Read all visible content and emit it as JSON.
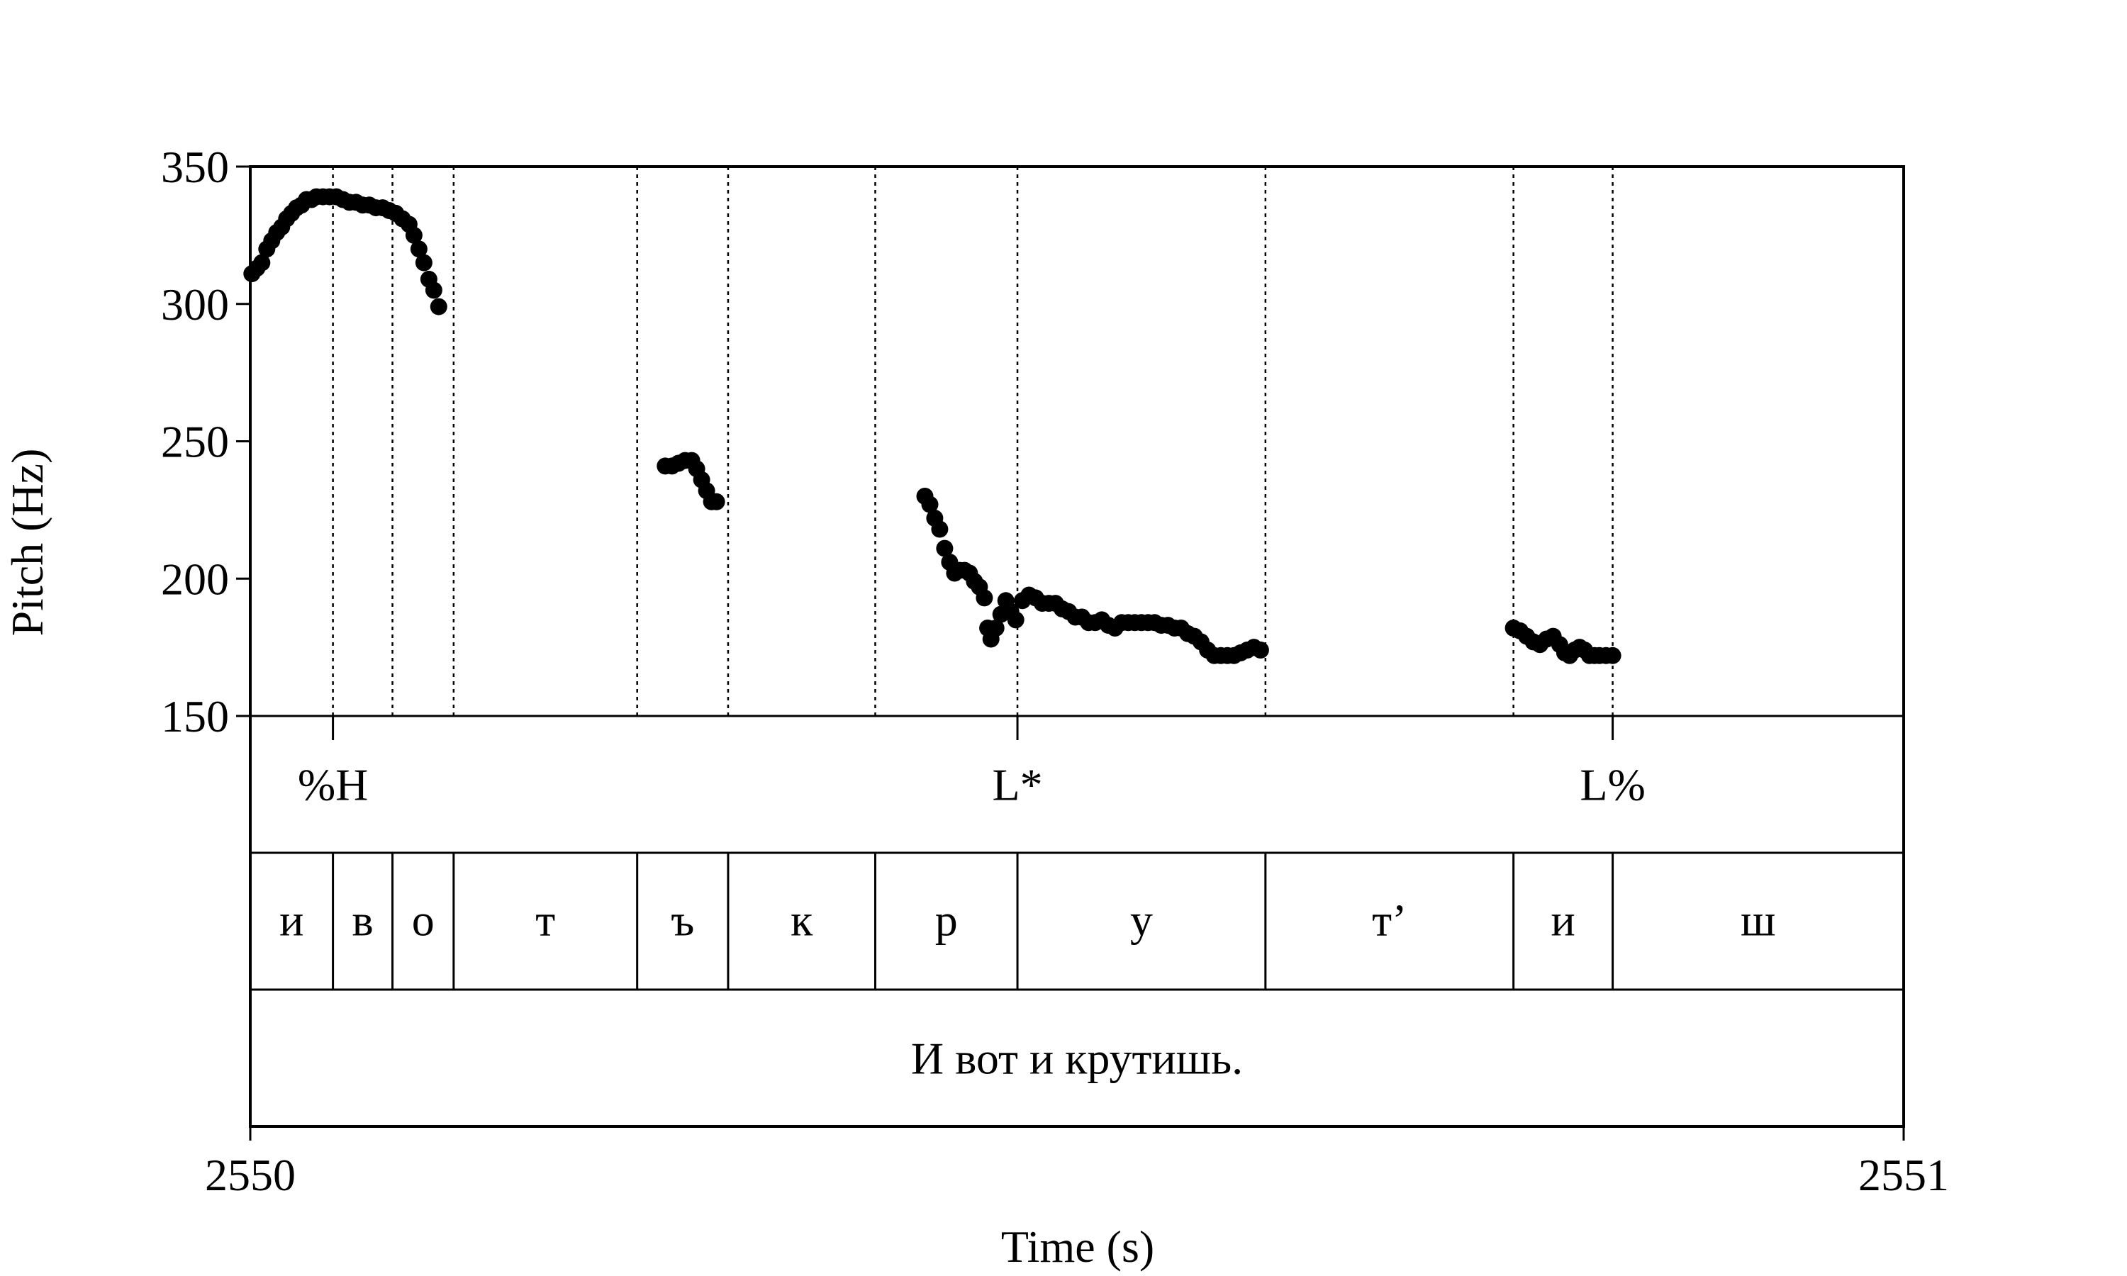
{
  "chart_data": {
    "type": "scatter",
    "title": "",
    "xlabel": "Time (s)",
    "ylabel": "Pitch (Hz)",
    "xlim": [
      2550,
      2551
    ],
    "ylim": [
      150,
      350
    ],
    "y_ticks": [
      "150",
      "200",
      "250",
      "300",
      "350"
    ],
    "x_ticks": [
      "2550",
      "2551"
    ],
    "grid": false,
    "boundaries": [
      2550.05,
      2550.086,
      2550.123,
      2550.234,
      2550.289,
      2550.378,
      2550.464,
      2550.614,
      2550.764,
      2550.824
    ],
    "tone_tier": [
      {
        "label": "%H",
        "time": 2550.05
      },
      {
        "label": "L*",
        "time": 2550.464
      },
      {
        "label": "L%",
        "time": 2550.824
      }
    ],
    "segment_tier": [
      {
        "label": "и",
        "start": 2550.0,
        "end": 2550.05
      },
      {
        "label": "в",
        "start": 2550.05,
        "end": 2550.086
      },
      {
        "label": "о",
        "start": 2550.086,
        "end": 2550.123
      },
      {
        "label": "т",
        "start": 2550.123,
        "end": 2550.234
      },
      {
        "label": "ъ",
        "start": 2550.234,
        "end": 2550.289
      },
      {
        "label": "к",
        "start": 2550.289,
        "end": 2550.378
      },
      {
        "label": "р",
        "start": 2550.378,
        "end": 2550.464
      },
      {
        "label": "у",
        "start": 2550.464,
        "end": 2550.614
      },
      {
        "label": "т’",
        "start": 2550.614,
        "end": 2550.764
      },
      {
        "label": "и",
        "start": 2550.764,
        "end": 2550.824
      },
      {
        "label": "ш",
        "start": 2550.824,
        "end": 2551.0
      }
    ],
    "sentence_tier": {
      "label": "И вот и крутишь.",
      "start": 2550.0,
      "end": 2551.0
    },
    "series": [
      {
        "points": [
          [
            2550.001,
            311
          ],
          [
            2550.004,
            313
          ],
          [
            2550.007,
            315
          ],
          [
            2550.01,
            320
          ],
          [
            2550.013,
            323
          ],
          [
            2550.016,
            326
          ],
          [
            2550.019,
            328
          ],
          [
            2550.022,
            331
          ],
          [
            2550.025,
            333
          ],
          [
            2550.028,
            335
          ],
          [
            2550.031,
            336
          ],
          [
            2550.034,
            338
          ],
          [
            2550.037,
            338
          ],
          [
            2550.04,
            339
          ],
          [
            2550.044,
            339
          ],
          [
            2550.048,
            339
          ],
          [
            2550.052,
            339
          ],
          [
            2550.056,
            338
          ],
          [
            2550.06,
            337
          ],
          [
            2550.064,
            337
          ],
          [
            2550.068,
            336
          ],
          [
            2550.072,
            336
          ],
          [
            2550.076,
            335
          ],
          [
            2550.08,
            335
          ],
          [
            2550.084,
            334
          ],
          [
            2550.088,
            333
          ],
          [
            2550.092,
            331
          ],
          [
            2550.096,
            329
          ],
          [
            2550.099,
            325
          ],
          [
            2550.102,
            320
          ],
          [
            2550.105,
            315
          ],
          [
            2550.108,
            309
          ],
          [
            2550.111,
            305
          ],
          [
            2550.114,
            299
          ]
        ]
      },
      {
        "points": [
          [
            2550.251,
            241
          ],
          [
            2550.255,
            241
          ],
          [
            2550.259,
            242
          ],
          [
            2550.263,
            243
          ],
          [
            2550.267,
            243
          ],
          [
            2550.27,
            240
          ],
          [
            2550.273,
            236
          ],
          [
            2550.276,
            232
          ],
          [
            2550.279,
            228
          ],
          [
            2550.282,
            228
          ]
        ]
      },
      {
        "points": [
          [
            2550.408,
            230
          ],
          [
            2550.411,
            227
          ],
          [
            2550.414,
            222
          ],
          [
            2550.417,
            218
          ],
          [
            2550.42,
            211
          ],
          [
            2550.423,
            206
          ],
          [
            2550.426,
            202
          ],
          [
            2550.429,
            203
          ],
          [
            2550.432,
            203
          ],
          [
            2550.435,
            202
          ],
          [
            2550.438,
            199
          ],
          [
            2550.441,
            197
          ],
          [
            2550.444,
            193
          ],
          [
            2550.446,
            182
          ],
          [
            2550.448,
            178
          ],
          [
            2550.451,
            182
          ],
          [
            2550.454,
            187
          ],
          [
            2550.457,
            192
          ],
          [
            2550.46,
            188
          ],
          [
            2550.463,
            185
          ],
          [
            2550.467,
            192
          ],
          [
            2550.471,
            194
          ],
          [
            2550.475,
            193
          ],
          [
            2550.479,
            191
          ],
          [
            2550.483,
            191
          ],
          [
            2550.487,
            191
          ],
          [
            2550.491,
            189
          ],
          [
            2550.495,
            188
          ],
          [
            2550.499,
            186
          ],
          [
            2550.503,
            186
          ],
          [
            2550.507,
            184
          ],
          [
            2550.511,
            184
          ],
          [
            2550.515,
            185
          ],
          [
            2550.519,
            183
          ],
          [
            2550.523,
            182
          ],
          [
            2550.527,
            184
          ],
          [
            2550.531,
            184
          ],
          [
            2550.535,
            184
          ],
          [
            2550.539,
            184
          ],
          [
            2550.543,
            184
          ],
          [
            2550.547,
            184
          ],
          [
            2550.551,
            183
          ],
          [
            2550.555,
            183
          ],
          [
            2550.559,
            182
          ],
          [
            2550.563,
            182
          ],
          [
            2550.567,
            180
          ],
          [
            2550.571,
            179
          ],
          [
            2550.575,
            177
          ],
          [
            2550.579,
            174
          ],
          [
            2550.583,
            172
          ],
          [
            2550.587,
            172
          ],
          [
            2550.591,
            172
          ],
          [
            2550.595,
            172
          ],
          [
            2550.599,
            173
          ],
          [
            2550.603,
            174
          ],
          [
            2550.607,
            175
          ],
          [
            2550.611,
            174
          ]
        ]
      },
      {
        "points": [
          [
            2550.764,
            182
          ],
          [
            2550.768,
            181
          ],
          [
            2550.772,
            179
          ],
          [
            2550.776,
            177
          ],
          [
            2550.78,
            176
          ],
          [
            2550.784,
            178
          ],
          [
            2550.788,
            179
          ],
          [
            2550.792,
            176
          ],
          [
            2550.795,
            173
          ],
          [
            2550.798,
            172
          ],
          [
            2550.801,
            174
          ],
          [
            2550.804,
            175
          ],
          [
            2550.807,
            174
          ],
          [
            2550.81,
            172
          ],
          [
            2550.813,
            172
          ],
          [
            2550.816,
            172
          ],
          [
            2550.82,
            172
          ],
          [
            2550.824,
            172
          ]
        ]
      }
    ]
  }
}
